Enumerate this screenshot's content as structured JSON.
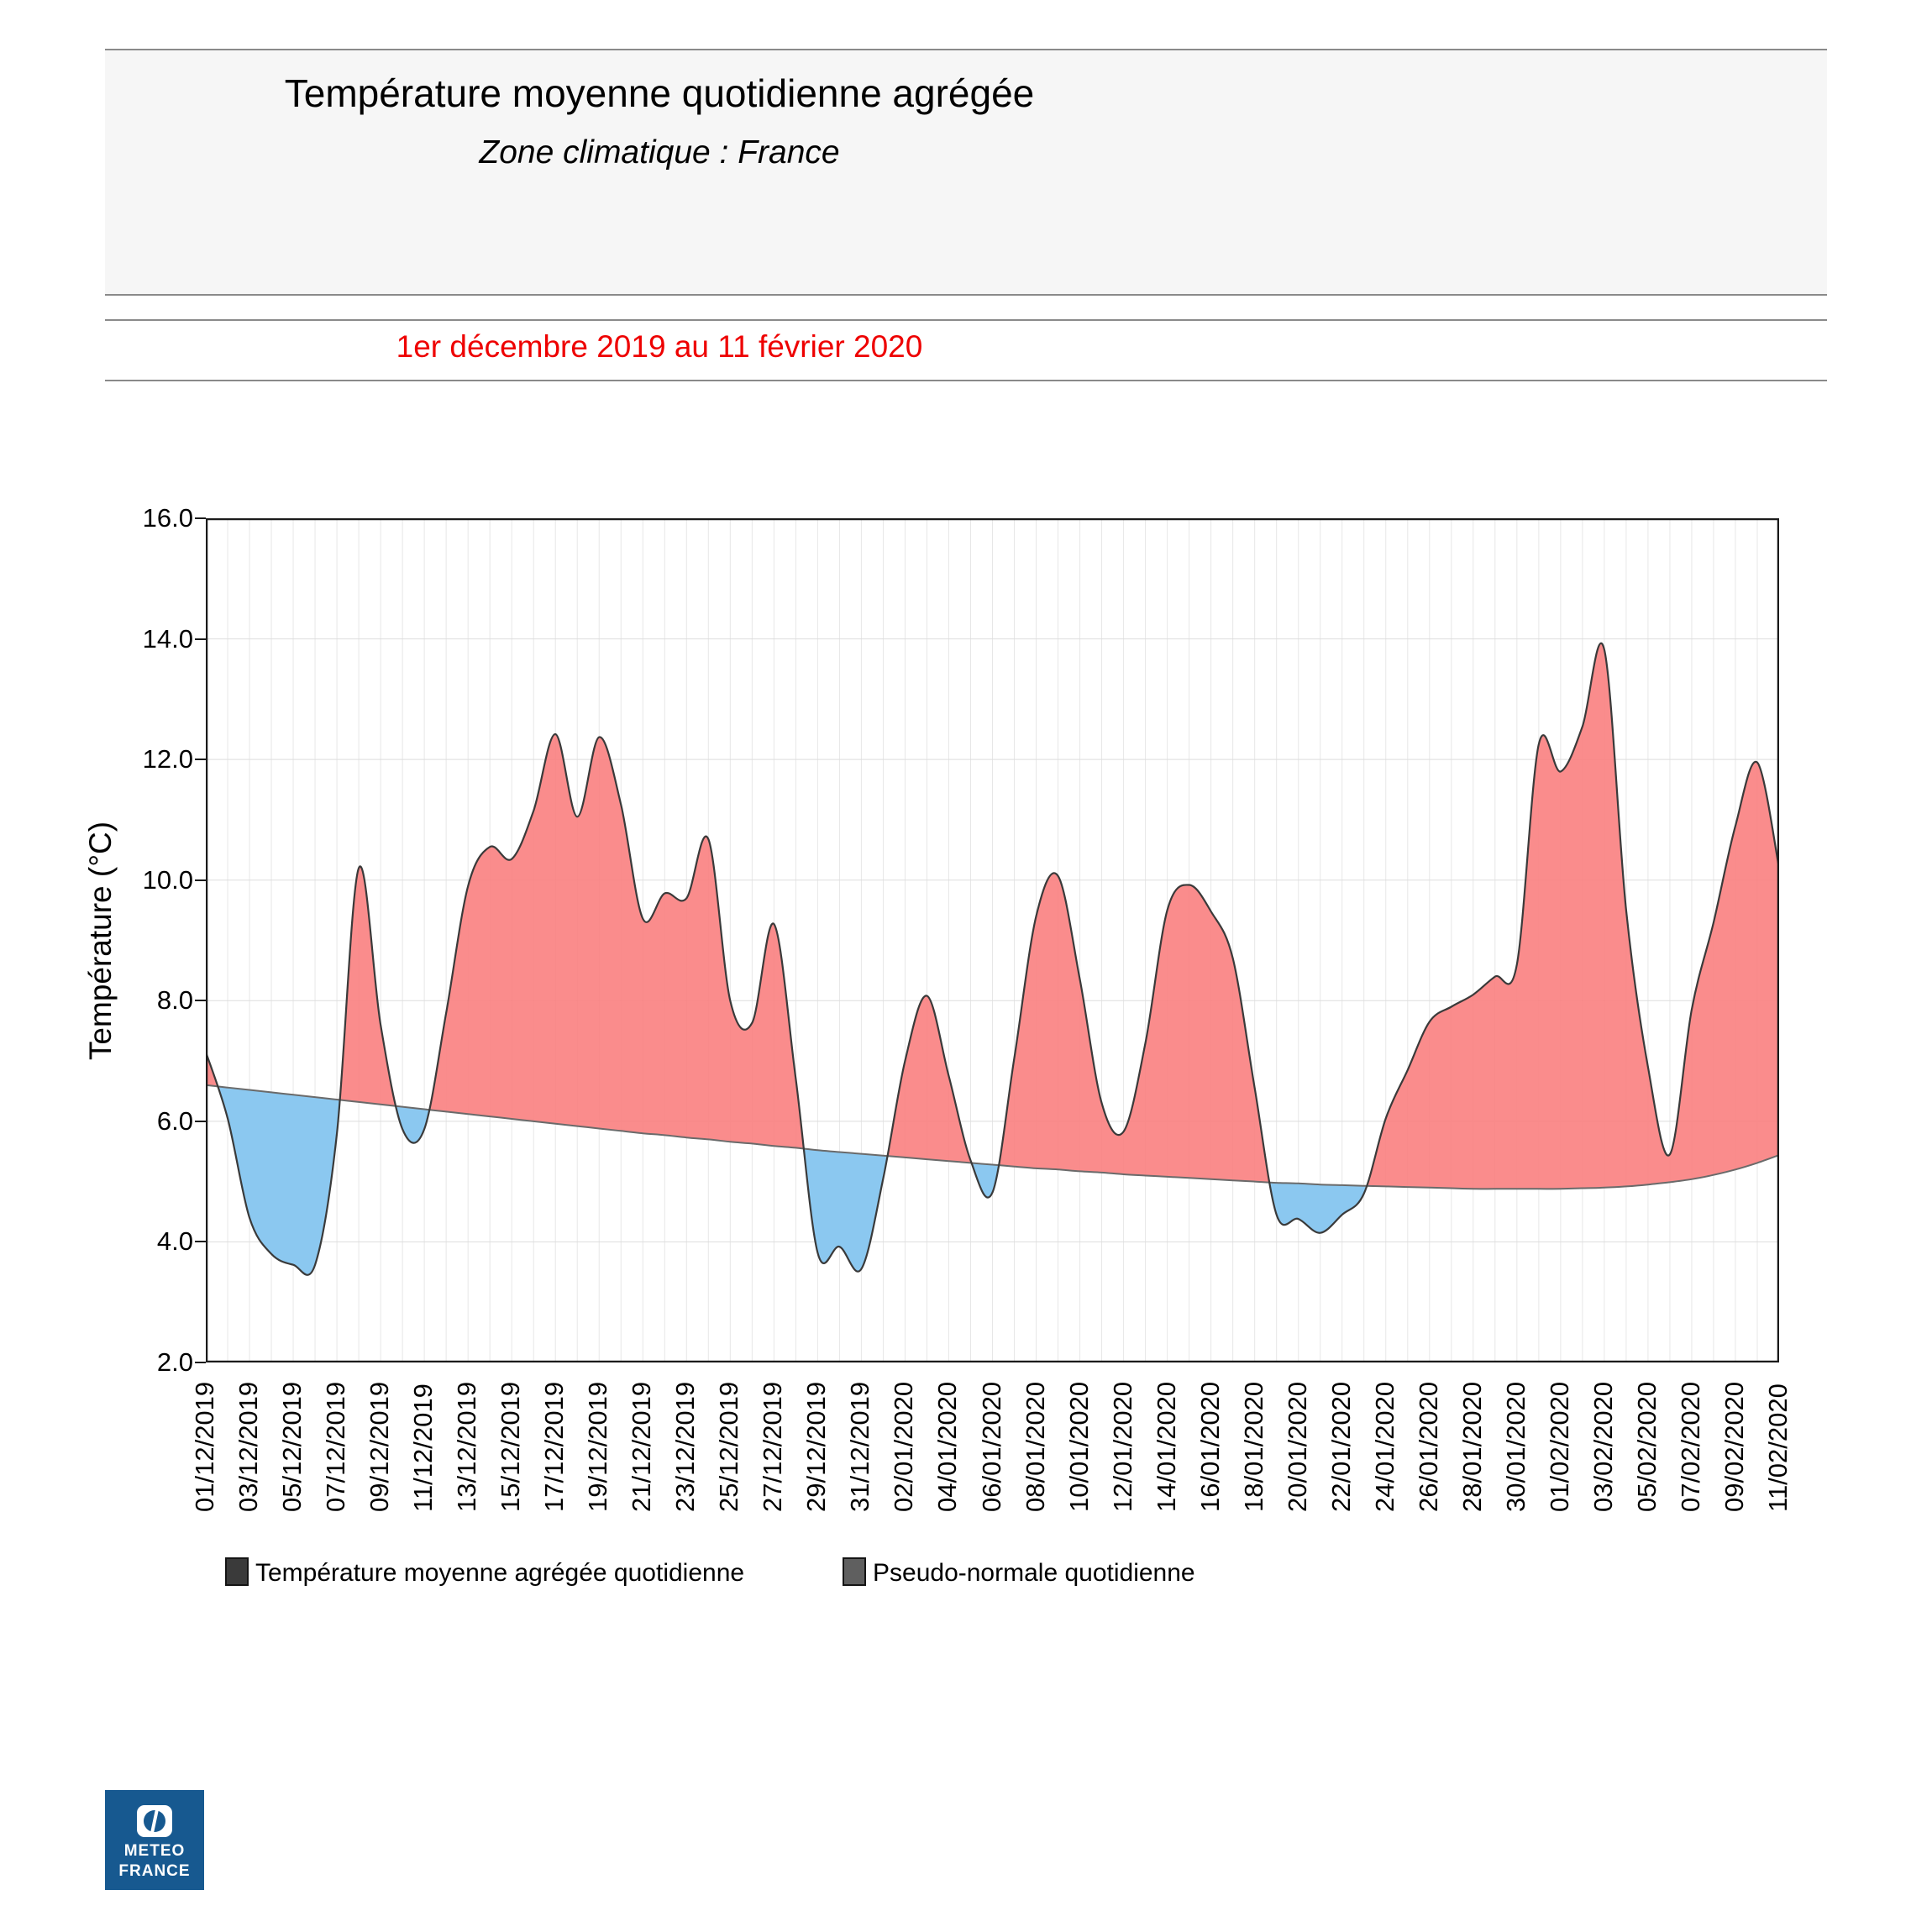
{
  "header": {
    "title": "Température moyenne quotidienne agrégée",
    "subtitle": "Zone climatique : France",
    "period": "1er décembre 2019 au 11 février 2020",
    "period_color": "#ee0000"
  },
  "chart": {
    "y_axis_title": "Température (°C)",
    "y_tick_labels": [
      "16.0",
      "14.0",
      "12.0",
      "10.0",
      "8.0",
      "6.0",
      "4.0",
      "2.0"
    ]
  },
  "chart_data": {
    "type": "area",
    "title": "Température moyenne quotidienne agrégée",
    "subtitle": "Zone climatique : France",
    "period": "1er décembre 2019 au 11 février 2020",
    "ylabel": "Température (°C)",
    "ylim": [
      2.0,
      16.0
    ],
    "y_ticks": [
      2.0,
      4.0,
      6.0,
      8.0,
      10.0,
      12.0,
      14.0,
      16.0
    ],
    "grid": "on",
    "legend_position": "bottom",
    "x_tick_labels": [
      "01/12/2019",
      "03/12/2019",
      "05/12/2019",
      "07/12/2019",
      "09/12/2019",
      "11/12/2019",
      "13/12/2019",
      "15/12/2019",
      "17/12/2019",
      "19/12/2019",
      "21/12/2019",
      "23/12/2019",
      "25/12/2019",
      "27/12/2019",
      "29/12/2019",
      "31/12/2019",
      "02/01/2020",
      "04/01/2020",
      "06/01/2020",
      "08/01/2020",
      "10/01/2020",
      "12/01/2020",
      "14/01/2020",
      "16/01/2020",
      "18/01/2020",
      "20/01/2020",
      "22/01/2020",
      "24/01/2020",
      "26/01/2020",
      "28/01/2020",
      "30/01/2020",
      "01/02/2020",
      "03/02/2020",
      "05/02/2020",
      "07/02/2020",
      "09/02/2020",
      "11/02/2020"
    ],
    "days_total": 73,
    "series": [
      {
        "name": "Température moyenne agrégée  quotidienne",
        "values": [
          7.15,
          6.05,
          4.4,
          3.8,
          3.62,
          3.62,
          5.8,
          10.2,
          7.6,
          5.87,
          5.87,
          7.8,
          9.9,
          10.55,
          10.35,
          11.15,
          12.42,
          11.05,
          12.37,
          11.25,
          9.36,
          9.78,
          9.7,
          10.68,
          8.0,
          7.63,
          9.27,
          6.7,
          3.82,
          3.92,
          3.55,
          5.05,
          7.0,
          8.08,
          6.75,
          5.35,
          4.82,
          7.05,
          9.4,
          10.07,
          8.35,
          6.3,
          5.83,
          7.3,
          9.5,
          9.92,
          9.48,
          8.7,
          6.55,
          4.45,
          4.38,
          4.15,
          4.45,
          4.8,
          6.05,
          6.85,
          7.65,
          7.9,
          8.1,
          8.4,
          8.6,
          12.25,
          11.8,
          12.55,
          13.82,
          9.5,
          6.9,
          5.45,
          7.85,
          9.3,
          10.9,
          11.95,
          10.2
        ]
      },
      {
        "name": "Pseudo-normale quotidienne",
        "values": [
          6.6,
          6.56,
          6.52,
          6.48,
          6.44,
          6.4,
          6.36,
          6.32,
          6.28,
          6.24,
          6.2,
          6.16,
          6.12,
          6.08,
          6.04,
          6.0,
          5.96,
          5.92,
          5.88,
          5.84,
          5.8,
          5.77,
          5.73,
          5.7,
          5.66,
          5.63,
          5.59,
          5.56,
          5.52,
          5.49,
          5.46,
          5.43,
          5.4,
          5.37,
          5.34,
          5.31,
          5.28,
          5.25,
          5.22,
          5.2,
          5.17,
          5.15,
          5.12,
          5.1,
          5.08,
          5.06,
          5.04,
          5.02,
          5.0,
          4.98,
          4.97,
          4.95,
          4.94,
          4.93,
          4.92,
          4.91,
          4.9,
          4.89,
          4.88,
          4.88,
          4.88,
          4.88,
          4.88,
          4.89,
          4.9,
          4.92,
          4.95,
          4.99,
          5.04,
          5.11,
          5.2,
          5.31,
          5.44
        ]
      }
    ],
    "colors": {
      "fill_above": "#f97f7f",
      "fill_below": "#85cbf5",
      "temp_line": "#3a3a3a",
      "normal_line": "#6a6a6a",
      "grid_line": "#e7e7e7",
      "grid_line_h": "#dddddd",
      "border": "#1a1a1a"
    }
  },
  "legend": {
    "items": [
      {
        "label": "Température moyenne agrégée  quotidienne",
        "color": "#3a3a3a"
      },
      {
        "label": "Pseudo-normale quotidienne",
        "color": "#5f5f5f"
      }
    ]
  },
  "logo": {
    "line1": "METEO",
    "line2": "FRANCE",
    "bg_color": "#175990"
  }
}
